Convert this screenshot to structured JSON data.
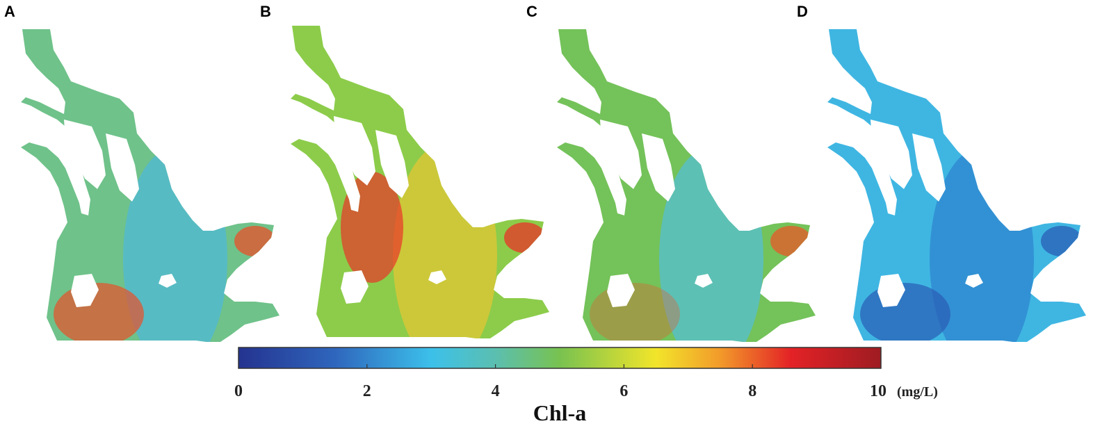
{
  "panels": [
    {
      "id": "A",
      "label": "A",
      "water_color": "#6fc28a",
      "accent_color": "#4fb8d6",
      "hot_color": "#e8502a"
    },
    {
      "id": "B",
      "label": "B",
      "water_color": "#8ccc4a",
      "accent_color": "#e2c735",
      "hot_color": "#e8342a"
    },
    {
      "id": "C",
      "label": "C",
      "water_color": "#74c25a",
      "accent_color": "#56bfd4",
      "hot_color": "#e8582a"
    },
    {
      "id": "D",
      "label": "D",
      "water_color": "#3fb6e2",
      "accent_color": "#2f84cf",
      "hot_color": "#2a5db6"
    }
  ],
  "colorbar": {
    "title": "Chl-a",
    "unit": "(mg/L)",
    "min": 0,
    "max": 10,
    "ticks": [
      {
        "value": 0,
        "label": "0"
      },
      {
        "value": 2,
        "label": "2"
      },
      {
        "value": 4,
        "label": "4"
      },
      {
        "value": 6,
        "label": "6"
      },
      {
        "value": 8,
        "label": "8"
      },
      {
        "value": 10,
        "label": "10"
      }
    ],
    "stops": [
      {
        "value": 0,
        "color": "#24338f"
      },
      {
        "value": 1.5,
        "color": "#2f66bd"
      },
      {
        "value": 3,
        "color": "#3cc0ea"
      },
      {
        "value": 4,
        "color": "#5bbfb0"
      },
      {
        "value": 5,
        "color": "#78c250"
      },
      {
        "value": 6.5,
        "color": "#f2e52a"
      },
      {
        "value": 7.5,
        "color": "#f29a2a"
      },
      {
        "value": 8.6,
        "color": "#e32226"
      },
      {
        "value": 10,
        "color": "#9e1c22"
      }
    ]
  }
}
